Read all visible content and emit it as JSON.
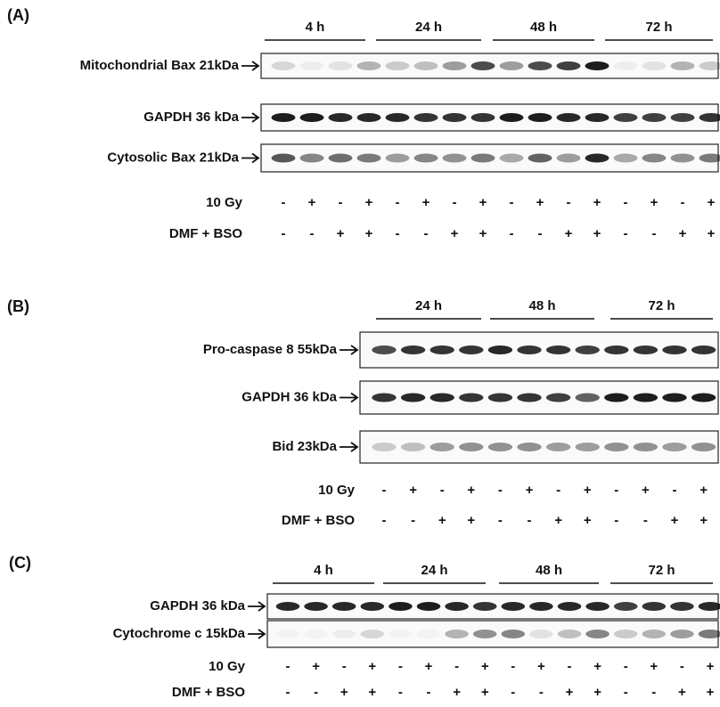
{
  "panels": [
    {
      "label": "(A)",
      "times": [
        "4 h",
        "24 h",
        "48 h",
        "72 h"
      ],
      "blots": [
        "Mitochondrial Bax 21kDa",
        "GAPDH 36 kDa",
        "Cytosolic Bax 21kDa"
      ],
      "rows": [
        {
          "label": "10 Gy",
          "signs": [
            "-",
            "+",
            "-",
            "+",
            "-",
            "+",
            "-",
            "+",
            "-",
            "+",
            "-",
            "+",
            "-",
            "+",
            "-",
            "+"
          ]
        },
        {
          "label": "DMF + BSO",
          "signs": [
            "-",
            "-",
            "+",
            "+",
            "-",
            "-",
            "+",
            "+",
            "-",
            "-",
            "+",
            "+",
            "-",
            "-",
            "+",
            "+"
          ]
        }
      ]
    },
    {
      "label": "(B)",
      "times": [
        "24 h",
        "48 h",
        "72 h"
      ],
      "blots": [
        "Pro-caspase 8 55kDa",
        "GAPDH 36 kDa",
        "Bid 23kDa"
      ],
      "rows": [
        {
          "label": "10 Gy",
          "signs": [
            "-",
            "+",
            "-",
            "+",
            "-",
            "+",
            "-",
            "+",
            "-",
            "+",
            "-",
            "+"
          ]
        },
        {
          "label": "DMF + BSO",
          "signs": [
            "-",
            "-",
            "+",
            "+",
            "-",
            "-",
            "+",
            "+",
            "-",
            "-",
            "+",
            "+"
          ]
        }
      ]
    },
    {
      "label": "(C)",
      "times": [
        "4 h",
        "24 h",
        "48 h",
        "72 h"
      ],
      "blots": [
        "GAPDH 36 kDa",
        "Cytochrome c 15kDa"
      ],
      "rows": [
        {
          "label": "10 Gy",
          "signs": [
            "-",
            "+",
            "-",
            "+",
            "-",
            "+",
            "-",
            "+",
            "-",
            "+",
            "-",
            "+",
            "-",
            "+",
            "-",
            "+"
          ]
        },
        {
          "label": "DMF + BSO",
          "signs": [
            "-",
            "-",
            "+",
            "+",
            "-",
            "-",
            "+",
            "+",
            "-",
            "-",
            "+",
            "+",
            "-",
            "-",
            "+",
            "+"
          ]
        }
      ]
    }
  ]
}
